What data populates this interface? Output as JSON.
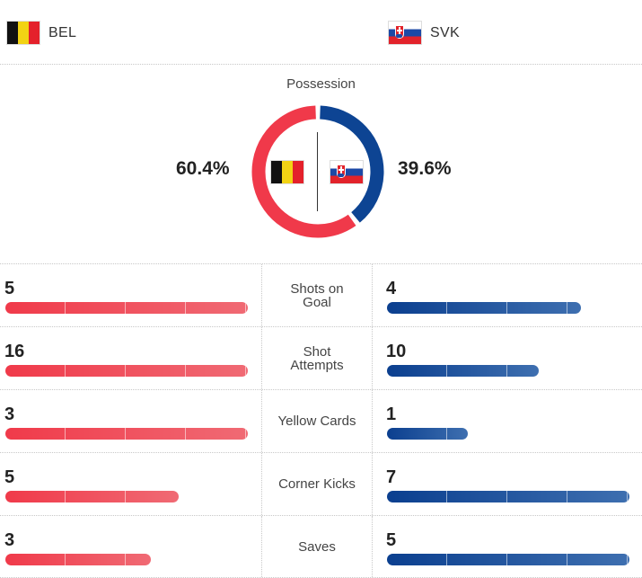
{
  "teams": {
    "home": {
      "code": "BEL",
      "flag_icon": "belgium-flag-icon",
      "color": "#f0394a"
    },
    "away": {
      "code": "SVK",
      "flag_icon": "slovakia-flag-icon",
      "color": "#0d4493"
    }
  },
  "possession": {
    "title": "Possession",
    "home_value": 60.4,
    "away_value": 39.6,
    "home_label": "60.4%",
    "away_label": "39.6%"
  },
  "stats": [
    {
      "label_lines": [
        "Shots on",
        "Goal"
      ],
      "home": "5",
      "away": "4",
      "home_fraction": 1.0,
      "away_fraction": 0.8
    },
    {
      "label_lines": [
        "Shot",
        "Attempts"
      ],
      "home": "16",
      "away": "10",
      "home_fraction": 1.0,
      "away_fraction": 0.625
    },
    {
      "label_lines": [
        "Yellow Cards"
      ],
      "home": "3",
      "away": "1",
      "home_fraction": 1.0,
      "away_fraction": 0.333
    },
    {
      "label_lines": [
        "Corner Kicks"
      ],
      "home": "5",
      "away": "7",
      "home_fraction": 0.714,
      "away_fraction": 1.0
    },
    {
      "label_lines": [
        "Saves"
      ],
      "home": "3",
      "away": "5",
      "home_fraction": 0.6,
      "away_fraction": 1.0
    }
  ]
}
